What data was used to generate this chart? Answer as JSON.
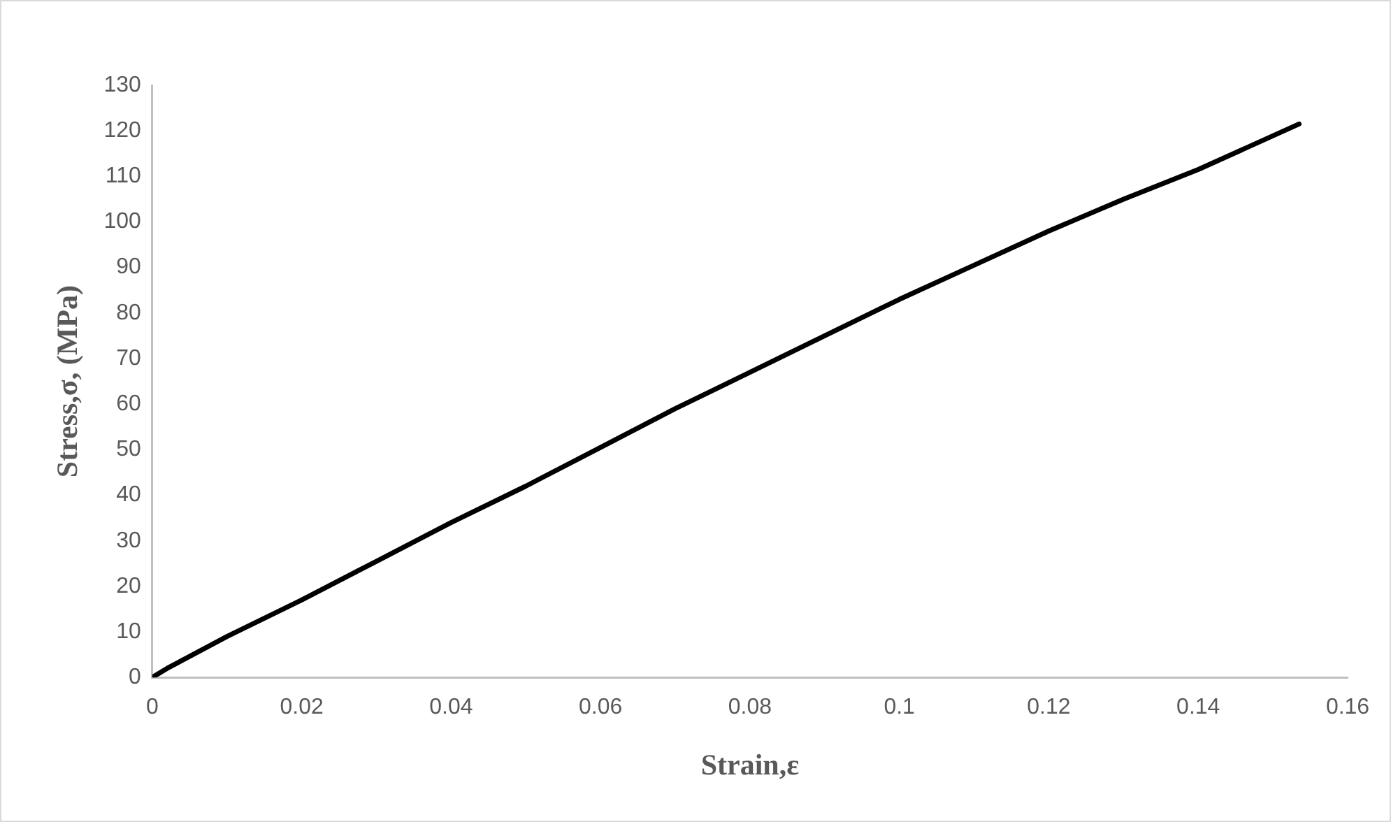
{
  "chart_data": {
    "type": "line",
    "xlabel": "Strain,ε",
    "ylabel": "Stress,σ, (MPa)",
    "x": [
      0,
      0.002,
      0.01,
      0.02,
      0.03,
      0.04,
      0.05,
      0.06,
      0.07,
      0.08,
      0.09,
      0.1,
      0.11,
      0.12,
      0.13,
      0.14,
      0.1535
    ],
    "series": [
      {
        "color": "#000000",
        "values": [
          0,
          2,
          9,
          17,
          25.5,
          34,
          42,
          50.5,
          59,
          67,
          75,
          83,
          90.5,
          98,
          105,
          111.5,
          121.5
        ]
      }
    ],
    "xlim": [
      0,
      0.16
    ],
    "xticks": [
      0,
      0.02,
      0.04,
      0.06,
      0.08,
      0.1,
      0.12,
      0.14,
      0.16
    ],
    "ylim": [
      0,
      130
    ],
    "yticks": [
      0,
      10,
      20,
      30,
      40,
      50,
      60,
      70,
      80,
      90,
      100,
      110,
      120,
      130
    ],
    "grid": false,
    "legend": false,
    "marker": "none",
    "line_style": "solid"
  }
}
